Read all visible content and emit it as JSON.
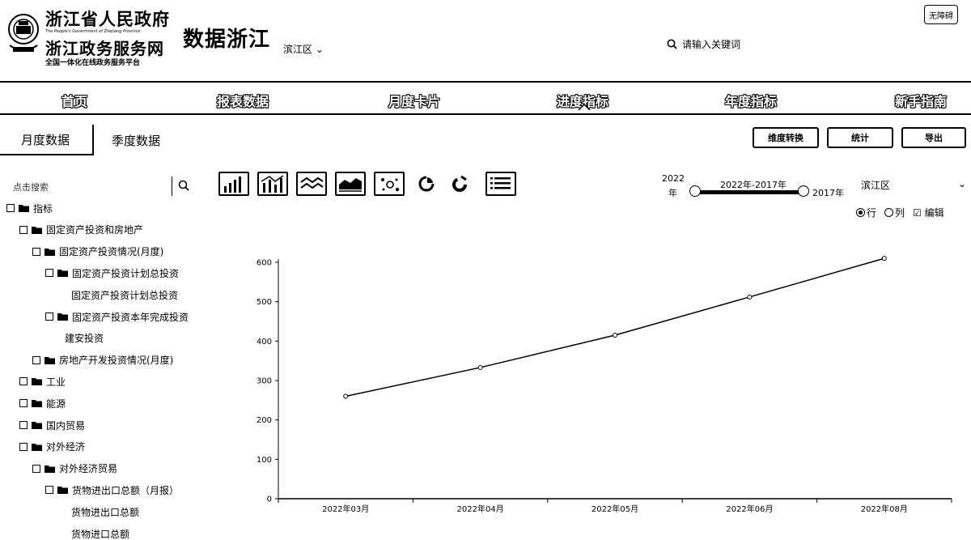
{
  "header": {
    "gov_title1": "浙江省人民政府",
    "gov_sub1": "The People's Government of Zhejiang Province",
    "gov_title2": "浙江政务服务网",
    "gov_sub2": "全国一体化在线政务服务平台",
    "brand": "数据浙江",
    "region": "滨江区",
    "search_placeholder": "请输入关键词",
    "corner_button": "无障碍"
  },
  "nav": {
    "items": [
      "首页",
      "报表数据",
      "月度卡片",
      "进度指标",
      "年度指标",
      "新手指南"
    ],
    "active_index": 3
  },
  "subtabs": {
    "active": "月度数据",
    "inactive": "季度数据"
  },
  "actions": {
    "convert": "维度转换",
    "stats": "统计",
    "export": "导出"
  },
  "tree": {
    "search_placeholder": "点击搜索",
    "items": [
      {
        "label": "指标",
        "level": 0,
        "box": true,
        "folder": true
      },
      {
        "label": "固定资产投资和房地产",
        "level": 1,
        "box": true,
        "folder": true
      },
      {
        "label": "固定资产投资情况(月度)",
        "level": 2,
        "box": true,
        "folder": true
      },
      {
        "label": "固定资产投资计划总投资",
        "level": 3,
        "box": true,
        "folder": true
      },
      {
        "label": "固定资产投资计划总投资",
        "level": 4,
        "box": false,
        "folder": false
      },
      {
        "label": "固定资产投资本年完成投资",
        "level": 3,
        "box": true,
        "folder": true
      },
      {
        "label": "建安投资",
        "level": 3.5,
        "box": false,
        "folder": false
      },
      {
        "label": "房地产开发投资情况(月度)",
        "level": 2,
        "box": true,
        "folder": true
      },
      {
        "label": "工业",
        "level": 1,
        "box": true,
        "folder": true
      },
      {
        "label": "能源",
        "level": 1,
        "box": true,
        "folder": true
      },
      {
        "label": "国内贸易",
        "level": 1,
        "box": true,
        "folder": true
      },
      {
        "label": "对外经济",
        "level": 1,
        "box": true,
        "folder": true
      },
      {
        "label": "对外经济贸易",
        "level": 2,
        "box": true,
        "folder": true
      },
      {
        "label": "货物进出口总额（月报）",
        "level": 3,
        "box": true,
        "folder": true
      },
      {
        "label": "货物进出口总额",
        "level": 4,
        "box": false,
        "folder": false
      },
      {
        "label": "货物进口总额",
        "level": 4,
        "box": false,
        "folder": false
      }
    ]
  },
  "chart_toolbar": {
    "icons": [
      "bar-chart-icon",
      "bar-line-chart-icon",
      "line-chart-icon",
      "area-chart-icon",
      "scatter-icon",
      "pie-chart-icon",
      "donut-chart-icon",
      "table-icon"
    ]
  },
  "year_range": {
    "start_year": "2022",
    "start_unit": "年",
    "range_label": "2022年-2017年",
    "end_label": "2017年"
  },
  "area_select": {
    "value": "滨江区"
  },
  "orientation": {
    "row": "行",
    "col": "列",
    "edit": "编辑",
    "selected": "row"
  },
  "chart_data": {
    "type": "line",
    "categories": [
      "2022年03月",
      "2022年04月",
      "2022年05月",
      "2022年06月",
      "2022年08月"
    ],
    "series": [
      {
        "values": [
          260,
          333,
          415,
          512,
          610
        ]
      }
    ],
    "ylim": [
      0,
      600
    ],
    "yticks": [
      0,
      100,
      200,
      300,
      400,
      500,
      600
    ],
    "grid": false,
    "colors": {
      "line": "#000000"
    }
  }
}
